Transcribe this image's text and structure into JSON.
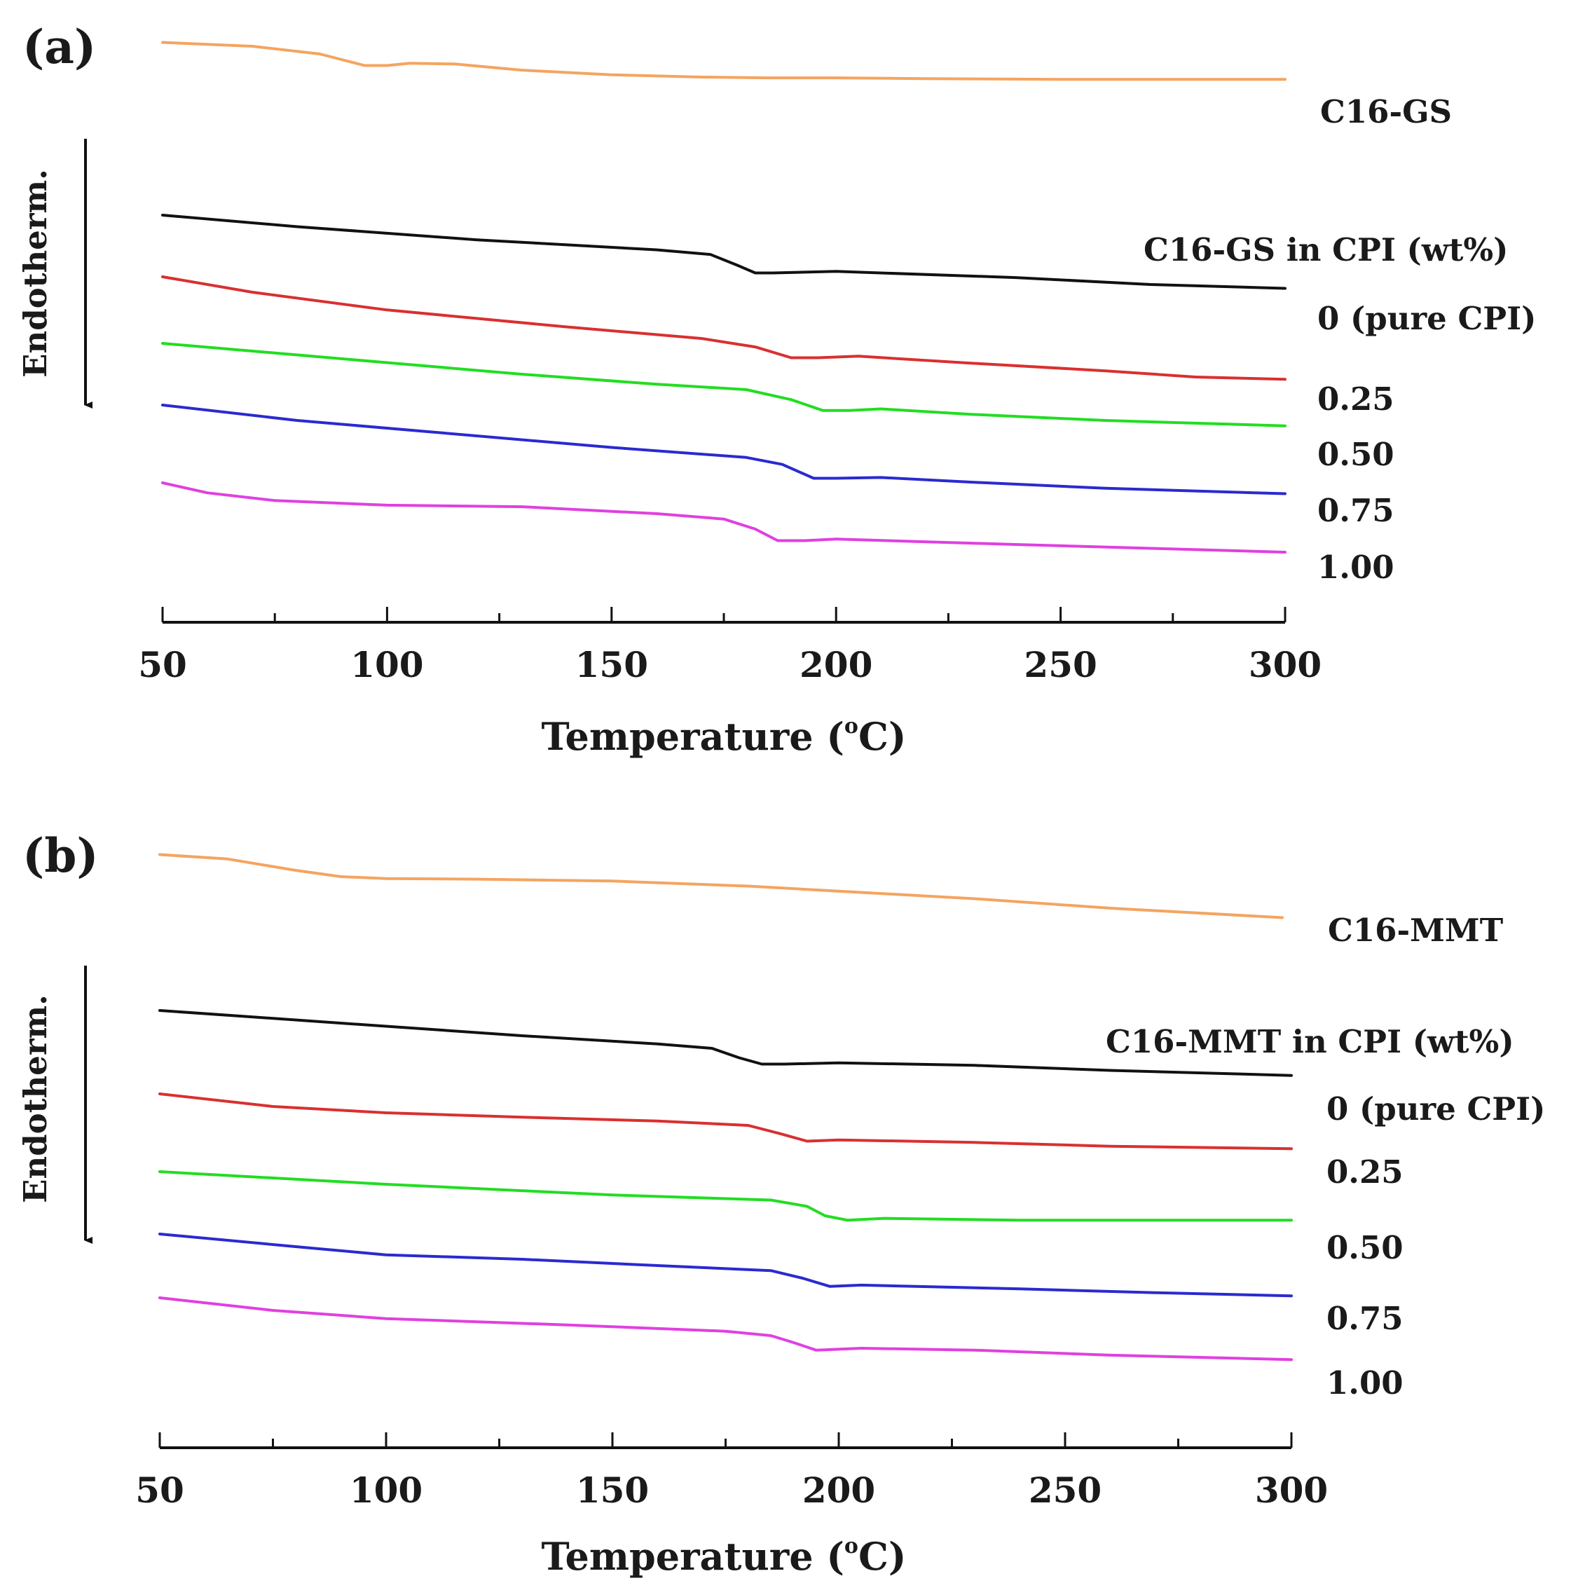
{
  "chart_data": [
    {
      "type": "line",
      "panel_label": "(a)",
      "xlabel_main": "Temperature (",
      "xlabel_deg": "o",
      "xlabel_end": "C)",
      "ylabel": "Endotherm.",
      "xlim": [
        50,
        300
      ],
      "xticks": [
        "50",
        "100",
        "150",
        "200",
        "250",
        "300"
      ],
      "legend_title": "C16-GS in CPI (wt%)",
      "series": [
        {
          "name": "C16-GS",
          "color": "#f4a460",
          "points": [
            [
              50,
              0.1
            ],
            [
              70,
              0.05
            ],
            [
              85,
              -0.05
            ],
            [
              95,
              -0.2
            ],
            [
              100,
              -0.2
            ],
            [
              105,
              -0.17
            ],
            [
              115,
              -0.18
            ],
            [
              130,
              -0.26
            ],
            [
              150,
              -0.32
            ],
            [
              170,
              -0.35
            ],
            [
              185,
              -0.36
            ],
            [
              200,
              -0.36
            ],
            [
              220,
              -0.37
            ],
            [
              250,
              -0.38
            ],
            [
              280,
              -0.38
            ],
            [
              300,
              -0.38
            ]
          ]
        },
        {
          "name": "0 (pure CPI)",
          "color": "#111111",
          "points": [
            [
              50,
              0.05
            ],
            [
              80,
              -0.1
            ],
            [
              120,
              -0.27
            ],
            [
              160,
              -0.4
            ],
            [
              172,
              -0.46
            ],
            [
              178,
              -0.6
            ],
            [
              182,
              -0.7
            ],
            [
              186,
              -0.7
            ],
            [
              200,
              -0.68
            ],
            [
              240,
              -0.76
            ],
            [
              270,
              -0.85
            ],
            [
              300,
              -0.9
            ]
          ]
        },
        {
          "name": "0.25",
          "color": "#d93030",
          "points": [
            [
              50,
              0.05
            ],
            [
              70,
              -0.15
            ],
            [
              100,
              -0.38
            ],
            [
              140,
              -0.6
            ],
            [
              170,
              -0.75
            ],
            [
              182,
              -0.86
            ],
            [
              190,
              -1.0
            ],
            [
              196,
              -1.0
            ],
            [
              205,
              -0.98
            ],
            [
              230,
              -1.07
            ],
            [
              260,
              -1.17
            ],
            [
              280,
              -1.25
            ],
            [
              300,
              -1.28
            ]
          ]
        },
        {
          "name": "0.50",
          "color": "#22dd22",
          "points": [
            [
              50,
              0.05
            ],
            [
              70,
              -0.05
            ],
            [
              100,
              -0.2
            ],
            [
              130,
              -0.35
            ],
            [
              160,
              -0.48
            ],
            [
              180,
              -0.55
            ],
            [
              190,
              -0.68
            ],
            [
              197,
              -0.82
            ],
            [
              203,
              -0.82
            ],
            [
              210,
              -0.8
            ],
            [
              230,
              -0.87
            ],
            [
              260,
              -0.95
            ],
            [
              300,
              -1.02
            ]
          ]
        },
        {
          "name": "0.75",
          "color": "#2a2ad0",
          "points": [
            [
              50,
              0.05
            ],
            [
              80,
              -0.15
            ],
            [
              110,
              -0.3
            ],
            [
              150,
              -0.5
            ],
            [
              180,
              -0.63
            ],
            [
              188,
              -0.72
            ],
            [
              195,
              -0.9
            ],
            [
              200,
              -0.9
            ],
            [
              210,
              -0.89
            ],
            [
              230,
              -0.95
            ],
            [
              260,
              -1.03
            ],
            [
              300,
              -1.1
            ]
          ]
        },
        {
          "name": "1.00",
          "color": "#e040e0",
          "points": [
            [
              50,
              0.05
            ],
            [
              60,
              -0.08
            ],
            [
              75,
              -0.18
            ],
            [
              100,
              -0.24
            ],
            [
              130,
              -0.26
            ],
            [
              160,
              -0.35
            ],
            [
              175,
              -0.42
            ],
            [
              182,
              -0.55
            ],
            [
              187,
              -0.7
            ],
            [
              193,
              -0.7
            ],
            [
              200,
              -0.68
            ],
            [
              240,
              -0.75
            ],
            [
              270,
              -0.8
            ],
            [
              300,
              -0.85
            ]
          ]
        }
      ]
    },
    {
      "type": "line",
      "panel_label": "(b)",
      "xlabel_main": "Temperature (",
      "xlabel_deg": "o",
      "xlabel_end": "C)",
      "ylabel": "Endotherm.",
      "xlim": [
        50,
        300
      ],
      "xticks": [
        "50",
        "100",
        "150",
        "200",
        "250",
        "300"
      ],
      "legend_title": "C16-MMT in CPI (wt%)",
      "series": [
        {
          "name": "C16-MMT",
          "color": "#f4a460",
          "points": [
            [
              50,
              0.1
            ],
            [
              65,
              0.03
            ],
            [
              80,
              -0.15
            ],
            [
              90,
              -0.25
            ],
            [
              100,
              -0.28
            ],
            [
              120,
              -0.29
            ],
            [
              150,
              -0.32
            ],
            [
              180,
              -0.4
            ],
            [
              200,
              -0.48
            ],
            [
              230,
              -0.6
            ],
            [
              260,
              -0.75
            ],
            [
              298,
              -0.9
            ]
          ]
        },
        {
          "name": "0 (pure CPI)",
          "color": "#111111",
          "points": [
            [
              50,
              0.05
            ],
            [
              70,
              -0.05
            ],
            [
              100,
              -0.2
            ],
            [
              130,
              -0.35
            ],
            [
              160,
              -0.48
            ],
            [
              172,
              -0.55
            ],
            [
              178,
              -0.7
            ],
            [
              183,
              -0.8
            ],
            [
              188,
              -0.8
            ],
            [
              200,
              -0.78
            ],
            [
              230,
              -0.82
            ],
            [
              260,
              -0.9
            ],
            [
              300,
              -0.98
            ]
          ]
        },
        {
          "name": "0.25",
          "color": "#d93030",
          "points": [
            [
              50,
              0.05
            ],
            [
              75,
              -0.15
            ],
            [
              100,
              -0.25
            ],
            [
              130,
              -0.32
            ],
            [
              160,
              -0.38
            ],
            [
              180,
              -0.45
            ],
            [
              187,
              -0.58
            ],
            [
              193,
              -0.7
            ],
            [
              200,
              -0.68
            ],
            [
              230,
              -0.72
            ],
            [
              260,
              -0.78
            ],
            [
              300,
              -0.82
            ]
          ]
        },
        {
          "name": "0.50",
          "color": "#22dd22",
          "points": [
            [
              50,
              0.05
            ],
            [
              100,
              -0.15
            ],
            [
              150,
              -0.32
            ],
            [
              185,
              -0.4
            ],
            [
              193,
              -0.5
            ],
            [
              197,
              -0.65
            ],
            [
              202,
              -0.72
            ],
            [
              210,
              -0.69
            ],
            [
              240,
              -0.72
            ],
            [
              300,
              -0.72
            ]
          ]
        },
        {
          "name": "0.75",
          "color": "#2a2ad0",
          "points": [
            [
              50,
              0.05
            ],
            [
              80,
              -0.15
            ],
            [
              100,
              -0.28
            ],
            [
              130,
              -0.35
            ],
            [
              160,
              -0.45
            ],
            [
              185,
              -0.53
            ],
            [
              192,
              -0.65
            ],
            [
              198,
              -0.78
            ],
            [
              205,
              -0.76
            ],
            [
              240,
              -0.82
            ],
            [
              270,
              -0.88
            ],
            [
              300,
              -0.93
            ]
          ]
        },
        {
          "name": "1.00",
          "color": "#e040e0",
          "points": [
            [
              50,
              0.05
            ],
            [
              75,
              -0.15
            ],
            [
              100,
              -0.28
            ],
            [
              140,
              -0.38
            ],
            [
              175,
              -0.48
            ],
            [
              185,
              -0.55
            ],
            [
              190,
              -0.66
            ],
            [
              195,
              -0.78
            ],
            [
              205,
              -0.75
            ],
            [
              230,
              -0.78
            ],
            [
              260,
              -0.86
            ],
            [
              300,
              -0.93
            ]
          ]
        }
      ]
    }
  ]
}
